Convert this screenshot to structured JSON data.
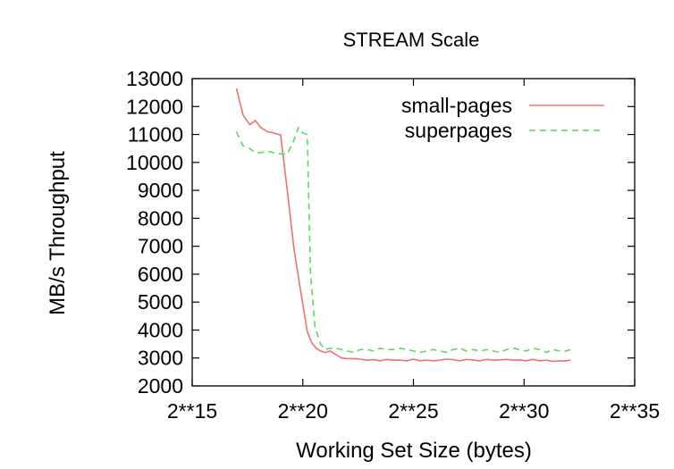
{
  "chart_data": {
    "type": "line",
    "title": "STREAM Scale",
    "xlabel": "Working Set Size (bytes)",
    "ylabel": "MB/s Throughput",
    "xscale": "log2",
    "xlim": [
      15,
      35
    ],
    "ylim": [
      2000,
      13000
    ],
    "x_ticks": [
      {
        "value": 15,
        "label": "2**15"
      },
      {
        "value": 20,
        "label": "2**20"
      },
      {
        "value": 25,
        "label": "2**25"
      },
      {
        "value": 30,
        "label": "2**30"
      },
      {
        "value": 35,
        "label": "2**35"
      }
    ],
    "y_ticks": [
      {
        "value": 2000,
        "label": "2000"
      },
      {
        "value": 3000,
        "label": "3000"
      },
      {
        "value": 4000,
        "label": "4000"
      },
      {
        "value": 5000,
        "label": "5000"
      },
      {
        "value": 6000,
        "label": "6000"
      },
      {
        "value": 7000,
        "label": "7000"
      },
      {
        "value": 8000,
        "label": "8000"
      },
      {
        "value": 9000,
        "label": "9000"
      },
      {
        "value": 10000,
        "label": "10000"
      },
      {
        "value": 11000,
        "label": "11000"
      },
      {
        "value": 12000,
        "label": "12000"
      },
      {
        "value": 13000,
        "label": "13000"
      }
    ],
    "grid": false,
    "legend_position": "top-right",
    "series": [
      {
        "name": "small-pages",
        "color": "#f07070",
        "dash": "solid",
        "x": [
          17,
          17.3,
          17.6,
          17.85,
          18.1,
          18.4,
          18.7,
          19,
          19.3,
          19.6,
          19.9,
          20.2,
          20.4,
          20.6,
          20.8,
          21,
          21.25,
          21.5,
          21.75,
          22,
          22.3,
          22.6,
          22.9,
          23.2,
          23.5,
          23.8,
          24.1,
          24.4,
          24.7,
          25,
          25.3,
          25.6,
          25.9,
          26.2,
          26.5,
          26.8,
          27.1,
          27.4,
          27.7,
          28,
          28.3,
          28.6,
          28.9,
          29.2,
          29.5,
          29.8,
          30.1,
          30.4,
          30.7,
          31,
          31.3,
          31.6,
          31.9,
          32.1
        ],
        "y": [
          12650,
          11700,
          11350,
          11500,
          11250,
          11100,
          11050,
          10980,
          9000,
          6900,
          5400,
          3950,
          3550,
          3350,
          3250,
          3200,
          3250,
          3120,
          3000,
          2980,
          2980,
          2960,
          2920,
          2940,
          2900,
          2950,
          2920,
          2920,
          2900,
          2960,
          2900,
          2920,
          2900,
          2920,
          2960,
          2940,
          2900,
          2950,
          2930,
          2900,
          2950,
          2920,
          2930,
          2950,
          2920,
          2930,
          2900,
          2950,
          2900,
          2920,
          2880,
          2900,
          2900,
          2920
        ]
      },
      {
        "name": "superpages",
        "color": "#55dd55",
        "dash": "dashed",
        "x": [
          17,
          17.3,
          17.6,
          17.85,
          18.1,
          18.4,
          18.7,
          19,
          19.3,
          19.6,
          19.8,
          20,
          20.2,
          20.35,
          20.55,
          20.8,
          21,
          21.25,
          21.5,
          21.75,
          22,
          22.3,
          22.6,
          22.9,
          23.2,
          23.5,
          23.8,
          24.1,
          24.4,
          24.7,
          25,
          25.3,
          25.6,
          25.9,
          26.2,
          26.5,
          26.8,
          27.1,
          27.4,
          27.7,
          28,
          28.3,
          28.6,
          28.9,
          29.2,
          29.5,
          29.8,
          30.1,
          30.4,
          30.7,
          31,
          31.3,
          31.6,
          31.9,
          32.1
        ],
        "y": [
          11100,
          10600,
          10500,
          10350,
          10350,
          10400,
          10350,
          10300,
          10300,
          10800,
          11250,
          11050,
          11000,
          6000,
          4100,
          3500,
          3300,
          3350,
          3350,
          3300,
          3250,
          3200,
          3300,
          3300,
          3250,
          3350,
          3300,
          3300,
          3350,
          3300,
          3250,
          3200,
          3250,
          3300,
          3250,
          3200,
          3300,
          3350,
          3250,
          3300,
          3250,
          3300,
          3250,
          3200,
          3300,
          3350,
          3300,
          3250,
          3350,
          3300,
          3200,
          3300,
          3250,
          3250,
          3300
        ]
      }
    ]
  }
}
